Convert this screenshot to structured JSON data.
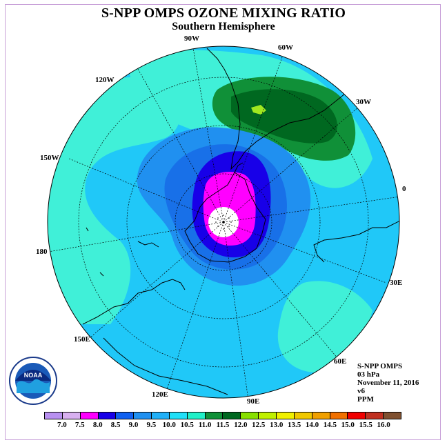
{
  "title": "S-NPP OMPS OZONE MIXING RATIO",
  "subtitle": "Southern Hemisphere",
  "longitudes": {
    "w90": "90W",
    "w60": "60W",
    "w120": "120W",
    "w30": "30W",
    "w150": "150W",
    "zero": "0",
    "d180": "180",
    "e30": "30E",
    "e150": "150E",
    "e60": "60E",
    "e120": "120E",
    "e90": "90E"
  },
  "info": {
    "instrument": "S-NPP OMPS",
    "level": "03 hPa",
    "date": "November 11, 2016",
    "version": "v6",
    "units": "PPM"
  },
  "colorbar": {
    "colors": [
      "#b890f0",
      "#d8b0f0",
      "#ff00ff",
      "#1800e8",
      "#1060f0",
      "#2090f0",
      "#20b0f8",
      "#20e0f8",
      "#20f0c8",
      "#109038",
      "#006820",
      "#88e000",
      "#c0f000",
      "#f0f000",
      "#f0c800",
      "#f0a000",
      "#f07000",
      "#f00000",
      "#c03020",
      "#805030"
    ],
    "labels": [
      "7.0",
      "7.5",
      "8.0",
      "8.5",
      "9.0",
      "9.5",
      "10.0",
      "10.5",
      "11.0",
      "11.5",
      "12.0",
      "12.5",
      "13.0",
      "13.5",
      "14.0",
      "14.5",
      "15.0",
      "15.5",
      "16.0"
    ]
  },
  "map_colors": {
    "background": "#20c8f8",
    "band_10_5": "#40f0d8",
    "band_11_5": "#109038",
    "band_12": "#006820",
    "band_12_5": "#a0e820",
    "band_9_5": "#2090f0",
    "band_9": "#1870e8",
    "band_8_5": "#1800e8",
    "band_8": "#ff00ff",
    "coast": "#000000"
  },
  "logo": {
    "text": "NOAA"
  }
}
